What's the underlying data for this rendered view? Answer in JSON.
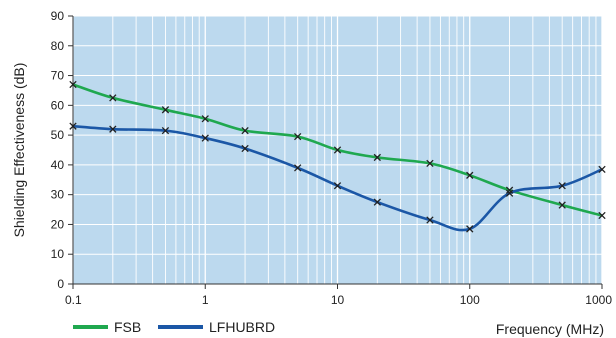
{
  "chart_data": {
    "type": "line",
    "title": "",
    "xlabel": "Frequency (MHz)",
    "ylabel": "Shielding Effectiveness (dB)",
    "x_scale": "log",
    "xlim": [
      0.1,
      1000
    ],
    "ylim": [
      0,
      90
    ],
    "x_ticks": [
      "0.1",
      "1",
      "10",
      "100",
      "1000"
    ],
    "y_ticks": [
      "0",
      "10",
      "20",
      "30",
      "40",
      "50",
      "60",
      "70",
      "80",
      "90"
    ],
    "grid": true,
    "legend_position": "bottom-left",
    "background_color": "#bcd9ee",
    "series": [
      {
        "name": "FSB",
        "color": "#1fa84f",
        "points": [
          [
            0.1,
            67
          ],
          [
            0.2,
            62.5
          ],
          [
            0.5,
            58.5
          ],
          [
            1,
            55.5
          ],
          [
            2,
            51.5
          ],
          [
            5,
            49.5
          ],
          [
            10,
            45
          ],
          [
            20,
            42.5
          ],
          [
            50,
            40.5
          ],
          [
            100,
            36.5
          ],
          [
            200,
            31.5
          ],
          [
            500,
            26.5
          ],
          [
            1000,
            23
          ]
        ]
      },
      {
        "name": "LFHUBRD",
        "color": "#1b57a6",
        "points": [
          [
            0.1,
            53
          ],
          [
            0.2,
            52
          ],
          [
            0.5,
            51.5
          ],
          [
            1,
            49
          ],
          [
            2,
            45.5
          ],
          [
            5,
            39
          ],
          [
            10,
            33
          ],
          [
            20,
            27.5
          ],
          [
            50,
            21.5
          ],
          [
            100,
            18.5
          ],
          [
            200,
            30.5
          ],
          [
            500,
            33
          ],
          [
            1000,
            38.5
          ]
        ]
      }
    ]
  }
}
